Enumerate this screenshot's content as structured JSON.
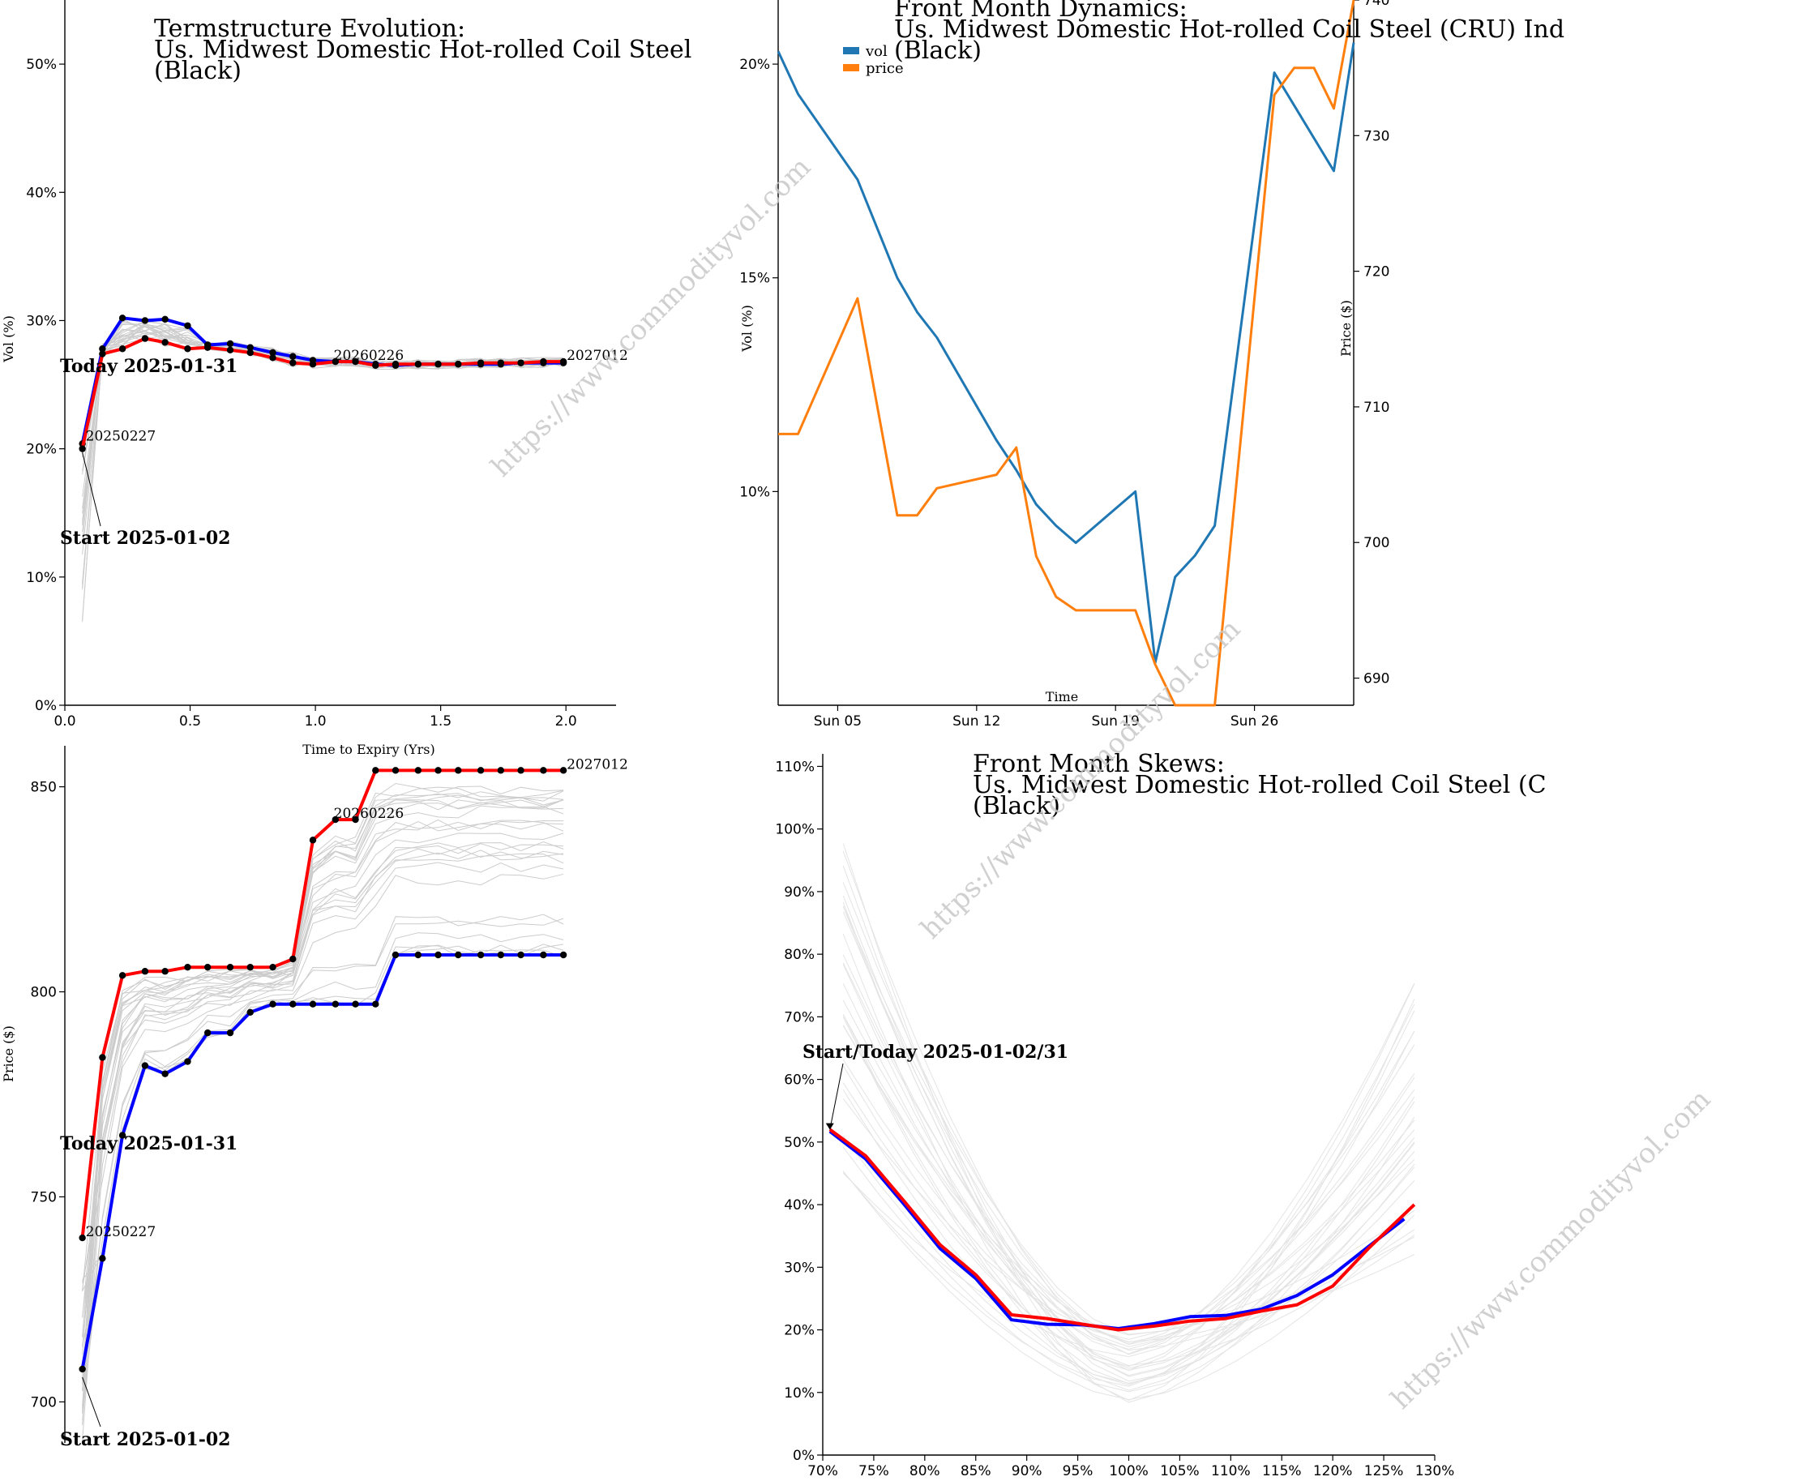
{
  "watermark": "https://www.commodityvol.com",
  "colors": {
    "today": "#ff0000",
    "start": "#0000ff",
    "history": "#cccccc",
    "vol": "#1f77b4",
    "price": "#ff7f0e"
  },
  "chart_data": [
    {
      "id": "termstructure_vol",
      "type": "line",
      "title_lines": [
        "Termstructure Evolution:",
        "Us. Midwest Domestic Hot-rolled Coil Steel",
        "(Black)"
      ],
      "xlabel": "Time to Expiry (Yrs)",
      "ylabel": "Vol (%)",
      "xlim": [
        0,
        2.2
      ],
      "ylim": [
        0,
        0.55
      ],
      "xticks": [
        0.0,
        0.5,
        1.0,
        1.5,
        2.0
      ],
      "xtick_labels": [
        "0.0",
        "0.5",
        "1.0",
        "1.5",
        "2.0"
      ],
      "yticks": [
        0,
        0.1,
        0.2,
        0.3,
        0.4,
        0.5
      ],
      "ytick_labels": [
        "0%",
        "10%",
        "20%",
        "30%",
        "40%",
        "50%"
      ],
      "series": [
        {
          "name": "Start 2025-01-02",
          "color": "#0000ff",
          "x": [
            0.07,
            0.15,
            0.23,
            0.32,
            0.4,
            0.49,
            0.57,
            0.66,
            0.74,
            0.83,
            0.91,
            0.99,
            1.08,
            1.16,
            1.24,
            1.32,
            1.41,
            1.49,
            1.57,
            1.66,
            1.74,
            1.82,
            1.91,
            1.99
          ],
          "y": [
            0.204,
            0.278,
            0.302,
            0.3,
            0.301,
            0.296,
            0.281,
            0.282,
            0.279,
            0.275,
            0.272,
            0.269,
            0.268,
            0.268,
            0.266,
            0.265,
            0.266,
            0.266,
            0.266,
            0.266,
            0.266,
            0.267,
            0.267,
            0.267
          ]
        },
        {
          "name": "Today 2025-01-31",
          "color": "#ff0000",
          "x": [
            0.07,
            0.15,
            0.23,
            0.32,
            0.4,
            0.49,
            0.57,
            0.66,
            0.74,
            0.83,
            0.91,
            0.99,
            1.08,
            1.16,
            1.24,
            1.32,
            1.41,
            1.49,
            1.57,
            1.66,
            1.74,
            1.82,
            1.91,
            1.99
          ],
          "y": [
            0.2,
            0.274,
            0.278,
            0.286,
            0.283,
            0.278,
            0.279,
            0.277,
            0.275,
            0.271,
            0.267,
            0.266,
            0.268,
            0.268,
            0.265,
            0.266,
            0.266,
            0.266,
            0.266,
            0.267,
            0.267,
            0.267,
            0.268,
            0.268
          ]
        }
      ],
      "annotations": [
        {
          "text": "20250227",
          "x": 0.07,
          "y": 0.205
        },
        {
          "text": "20260226",
          "x": 1.06,
          "y": 0.268
        },
        {
          "text": "2027012",
          "x": 1.99,
          "y": 0.268
        }
      ],
      "today_label": "Today 2025-01-31",
      "start_label": "Start 2025-01-02"
    },
    {
      "id": "termstructure_price",
      "type": "line",
      "ylabel": "Price ($)",
      "xlim": [
        0,
        2.2
      ],
      "ylim": [
        690,
        860
      ],
      "yticks": [
        700,
        750,
        800,
        850
      ],
      "ytick_labels": [
        "700",
        "750",
        "800",
        "850"
      ],
      "series": [
        {
          "name": "Start 2025-01-02",
          "color": "#0000ff",
          "x": [
            0.07,
            0.15,
            0.23,
            0.32,
            0.4,
            0.49,
            0.57,
            0.66,
            0.74,
            0.83,
            0.91,
            0.99,
            1.08,
            1.16,
            1.24,
            1.32,
            1.41,
            1.49,
            1.57,
            1.66,
            1.74,
            1.82,
            1.91,
            1.99
          ],
          "y": [
            708,
            735,
            765,
            782,
            780,
            783,
            790,
            790,
            795,
            797,
            797,
            797,
            797,
            797,
            797,
            809,
            809,
            809,
            809,
            809,
            809,
            809,
            809,
            809
          ]
        },
        {
          "name": "Today 2025-01-31",
          "color": "#ff0000",
          "x": [
            0.07,
            0.15,
            0.23,
            0.32,
            0.4,
            0.49,
            0.57,
            0.66,
            0.74,
            0.83,
            0.91,
            0.99,
            1.08,
            1.16,
            1.24,
            1.32,
            1.41,
            1.49,
            1.57,
            1.66,
            1.74,
            1.82,
            1.91,
            1.99
          ],
          "y": [
            740,
            784,
            804,
            805,
            805,
            806,
            806,
            806,
            806,
            806,
            808,
            837,
            842,
            842,
            854,
            854,
            854,
            854,
            854,
            854,
            854,
            854,
            854,
            854
          ]
        }
      ],
      "annotations": [
        {
          "text": "20250227",
          "x": 0.07,
          "y": 740
        },
        {
          "text": "20260226",
          "x": 1.06,
          "y": 842
        },
        {
          "text": "2027012",
          "x": 1.99,
          "y": 854
        }
      ],
      "today_label": "Today 2025-01-31",
      "start_label": "Start 2025-01-02"
    },
    {
      "id": "front_month_dynamics",
      "type": "line",
      "title_lines": [
        "Front Month Dynamics:",
        "Us. Midwest Domestic Hot-rolled Coil Steel (CRU) Ind",
        "(Black)"
      ],
      "xlabel": "Time",
      "ylabel": "Vol (%)",
      "ylabel_right": "Price ($)",
      "xlim": [
        "2025-01-02",
        "2025-01-31"
      ],
      "xtick_labels": [
        "Sun 05",
        "Sun 12",
        "Sun 19",
        "Sun 26"
      ],
      "xtick_dates": [
        "2025-01-05",
        "2025-01-12",
        "2025-01-19",
        "2025-01-26"
      ],
      "ylim_left": [
        0.05,
        0.215
      ],
      "yticks_left": [
        0.1,
        0.15,
        0.2
      ],
      "ytick_labels_left": [
        "10%",
        "15%",
        "20%"
      ],
      "ylim_right": [
        688,
        740
      ],
      "yticks_right": [
        690,
        700,
        710,
        720,
        730,
        740
      ],
      "ytick_labels_right": [
        "690",
        "700",
        "710",
        "720",
        "730",
        "740"
      ],
      "legend": [
        "vol",
        "price"
      ],
      "series": [
        {
          "name": "vol",
          "color": "#1f77b4",
          "axis": "left",
          "x": [
            "2025-01-02",
            "2025-01-03",
            "2025-01-06",
            "2025-01-08",
            "2025-01-09",
            "2025-01-10",
            "2025-01-13",
            "2025-01-14",
            "2025-01-15",
            "2025-01-16",
            "2025-01-17",
            "2025-01-20",
            "2025-01-21",
            "2025-01-22",
            "2025-01-23",
            "2025-01-24",
            "2025-01-27",
            "2025-01-30",
            "2025-01-31"
          ],
          "y": [
            0.203,
            0.193,
            0.173,
            0.15,
            0.142,
            0.136,
            0.112,
            0.105,
            0.097,
            0.092,
            0.088,
            0.1,
            0.06,
            0.08,
            0.085,
            0.092,
            0.198,
            0.175,
            0.205
          ]
        },
        {
          "name": "price",
          "color": "#ff7f0e",
          "axis": "right",
          "x": [
            "2025-01-02",
            "2025-01-03",
            "2025-01-06",
            "2025-01-08",
            "2025-01-09",
            "2025-01-10",
            "2025-01-13",
            "2025-01-14",
            "2025-01-15",
            "2025-01-16",
            "2025-01-17",
            "2025-01-20",
            "2025-01-21",
            "2025-01-22",
            "2025-01-23",
            "2025-01-24",
            "2025-01-27",
            "2025-01-28",
            "2025-01-29",
            "2025-01-30",
            "2025-01-31"
          ],
          "y": [
            708,
            708,
            718,
            702,
            702,
            704,
            705,
            707,
            699,
            696,
            695,
            695,
            691,
            688,
            688,
            688,
            733,
            735,
            735,
            732,
            741
          ]
        }
      ]
    },
    {
      "id": "front_month_skews",
      "type": "line",
      "title_lines": [
        "Front Month Skews:",
        "Us. Midwest Domestic Hot-rolled Coil Steel (C",
        "(Black)"
      ],
      "xlim": [
        0.7,
        1.3
      ],
      "xticks": [
        0.7,
        0.75,
        0.8,
        0.85,
        0.9,
        0.95,
        1.0,
        1.05,
        1.1,
        1.15,
        1.2,
        1.25,
        1.3
      ],
      "xtick_labels": [
        "70%",
        "75%",
        "80%",
        "85%",
        "90%",
        "95%",
        "100%",
        "105%",
        "110%",
        "115%",
        "120%",
        "125%",
        "130%"
      ],
      "ylim": [
        0,
        1.12
      ],
      "yticks": [
        0,
        0.1,
        0.2,
        0.3,
        0.4,
        0.5,
        0.6,
        0.7,
        0.8,
        0.9,
        1.0,
        1.1
      ],
      "ytick_labels": [
        "0%",
        "10%",
        "20%",
        "30%",
        "40%",
        "50%",
        "60%",
        "70%",
        "80%",
        "90%",
        "100%",
        "110%"
      ],
      "series": [
        {
          "name": "Start 2025-01-02",
          "color": "#0000ff",
          "x": [
            0.707,
            0.742,
            0.78,
            0.815,
            0.85,
            0.885,
            0.92,
            0.955,
            0.99,
            1.025,
            1.06,
            1.095,
            1.13,
            1.165,
            1.2,
            1.235,
            1.27
          ],
          "y": [
            0.517,
            0.473,
            0.4,
            0.33,
            0.282,
            0.216,
            0.209,
            0.208,
            0.202,
            0.21,
            0.221,
            0.223,
            0.233,
            0.255,
            0.288,
            0.333,
            0.377
          ]
        },
        {
          "name": "Today 2025-01-31",
          "color": "#ff0000",
          "x": [
            0.707,
            0.742,
            0.78,
            0.815,
            0.85,
            0.885,
            0.92,
            0.955,
            0.99,
            1.025,
            1.06,
            1.095,
            1.13,
            1.165,
            1.2,
            1.235,
            1.28
          ],
          "y": [
            0.52,
            0.478,
            0.405,
            0.336,
            0.288,
            0.224,
            0.218,
            0.209,
            0.2,
            0.206,
            0.214,
            0.218,
            0.23,
            0.24,
            0.27,
            0.33,
            0.4
          ]
        }
      ],
      "label": "Start/Today 2025-01-02/31"
    }
  ]
}
